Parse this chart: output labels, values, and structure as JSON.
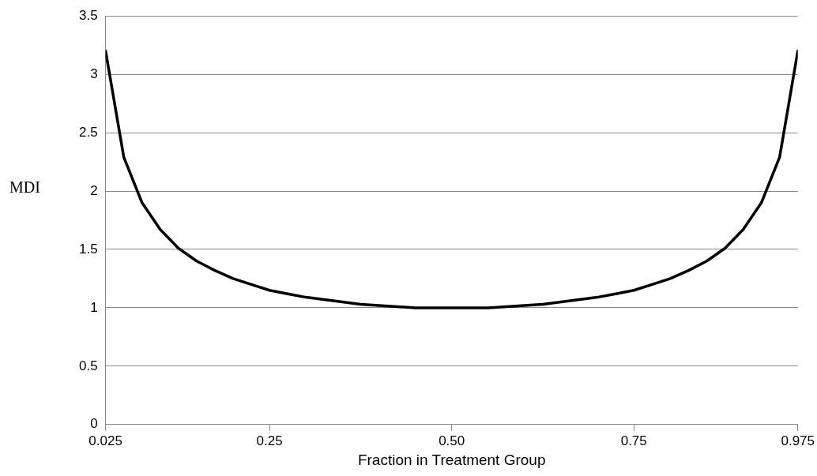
{
  "chart_data": {
    "type": "line",
    "xlabel": "Fraction in Treatment Group",
    "ylabel": "MDI",
    "x": [
      0.025,
      0.05,
      0.075,
      0.1,
      0.125,
      0.15,
      0.175,
      0.2,
      0.225,
      0.25,
      0.275,
      0.3,
      0.325,
      0.35,
      0.375,
      0.4,
      0.425,
      0.45,
      0.475,
      0.5,
      0.525,
      0.55,
      0.575,
      0.6,
      0.625,
      0.65,
      0.675,
      0.7,
      0.725,
      0.75,
      0.775,
      0.8,
      0.825,
      0.85,
      0.875,
      0.9,
      0.925,
      0.95,
      0.975
    ],
    "series": [
      {
        "color": "#000000",
        "values": [
          3.2,
          2.29,
          1.9,
          1.67,
          1.51,
          1.4,
          1.32,
          1.25,
          1.2,
          1.15,
          1.12,
          1.09,
          1.07,
          1.05,
          1.03,
          1.02,
          1.01,
          1.0,
          1.0,
          1.0,
          1.0,
          1.0,
          1.01,
          1.02,
          1.03,
          1.05,
          1.07,
          1.09,
          1.12,
          1.15,
          1.2,
          1.25,
          1.32,
          1.4,
          1.51,
          1.67,
          1.9,
          2.29,
          3.2
        ]
      }
    ],
    "xlim": [
      0.025,
      0.975
    ],
    "xticks": [
      {
        "value": 0.025,
        "label": "0.025"
      },
      {
        "value": 0.25,
        "label": "0.25"
      },
      {
        "value": 0.5,
        "label": "0.50"
      },
      {
        "value": 0.75,
        "label": "0.75"
      },
      {
        "value": 0.975,
        "label": "0.975"
      }
    ],
    "ylim": [
      0,
      3.5
    ],
    "yticks": [
      0,
      0.5,
      1,
      1.5,
      2,
      2.5,
      3,
      3.5
    ],
    "grid": "y",
    "legend": false,
    "marker": "none",
    "line_style": "solid"
  }
}
